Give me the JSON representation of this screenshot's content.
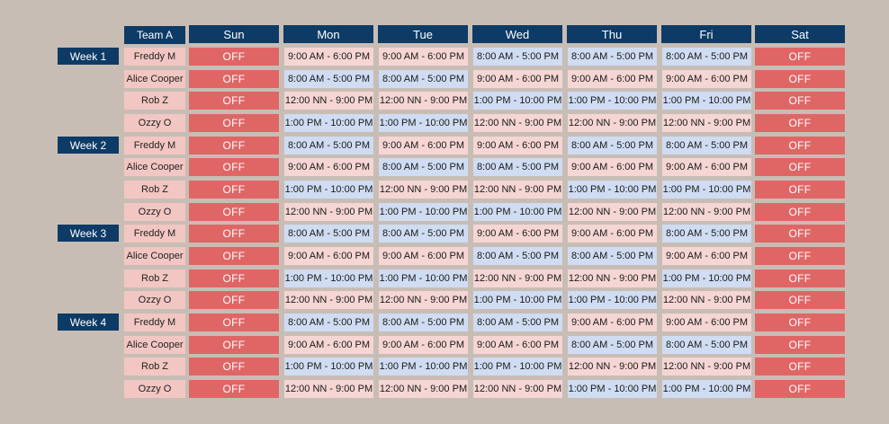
{
  "colors": {
    "background": "#c8bdb5",
    "header": "#0d3b66",
    "off": "#e06666",
    "name_cell": "#f2c6c2",
    "shift_blue": "#cfdcf2",
    "shift_pink": "#f5d6d4"
  },
  "header": {
    "team": "Team A",
    "days": [
      "Sun",
      "Mon",
      "Tue",
      "Wed",
      "Thu",
      "Fri",
      "Sat"
    ]
  },
  "weeks": [
    {
      "label": "Week 1",
      "rows": [
        {
          "name": "Freddy M",
          "cells": [
            {
              "text": "OFF",
              "style": "off"
            },
            {
              "text": "9:00 AM - 6:00 PM",
              "style": "pink"
            },
            {
              "text": "9:00 AM - 6:00 PM",
              "style": "pink"
            },
            {
              "text": "8:00 AM - 5:00 PM",
              "style": "blue"
            },
            {
              "text": "8:00 AM - 5:00 PM",
              "style": "blue"
            },
            {
              "text": "8:00 AM - 5:00 PM",
              "style": "blue"
            },
            {
              "text": "OFF",
              "style": "off"
            }
          ]
        },
        {
          "name": "Alice Cooper",
          "cells": [
            {
              "text": "OFF",
              "style": "off"
            },
            {
              "text": "8:00 AM - 5:00 PM",
              "style": "blue"
            },
            {
              "text": "8:00 AM - 5:00 PM",
              "style": "blue"
            },
            {
              "text": "9:00 AM - 6:00 PM",
              "style": "pink"
            },
            {
              "text": "9:00 AM - 6:00 PM",
              "style": "pink"
            },
            {
              "text": "9:00 AM - 6:00 PM",
              "style": "pink"
            },
            {
              "text": "OFF",
              "style": "off"
            }
          ]
        },
        {
          "name": "Rob Z",
          "cells": [
            {
              "text": "OFF",
              "style": "off"
            },
            {
              "text": "12:00 NN - 9:00 PM",
              "style": "pink"
            },
            {
              "text": "12:00 NN - 9:00 PM",
              "style": "pink"
            },
            {
              "text": "1:00 PM - 10:00 PM",
              "style": "blue"
            },
            {
              "text": "1:00 PM - 10:00 PM",
              "style": "blue"
            },
            {
              "text": "1:00 PM - 10:00 PM",
              "style": "blue"
            },
            {
              "text": "OFF",
              "style": "off"
            }
          ]
        },
        {
          "name": "Ozzy O",
          "cells": [
            {
              "text": "OFF",
              "style": "off"
            },
            {
              "text": "1:00 PM - 10:00 PM",
              "style": "blue"
            },
            {
              "text": "1:00 PM - 10:00 PM",
              "style": "blue"
            },
            {
              "text": "12:00 NN - 9:00 PM",
              "style": "pink"
            },
            {
              "text": "12:00 NN - 9:00 PM",
              "style": "pink"
            },
            {
              "text": "12:00 NN - 9:00 PM",
              "style": "pink"
            },
            {
              "text": "OFF",
              "style": "off"
            }
          ]
        }
      ]
    },
    {
      "label": "Week 2",
      "rows": [
        {
          "name": "Freddy M",
          "cells": [
            {
              "text": "OFF",
              "style": "off"
            },
            {
              "text": "8:00 AM - 5:00 PM",
              "style": "blue"
            },
            {
              "text": "9:00 AM - 6:00 PM",
              "style": "pink"
            },
            {
              "text": "9:00 AM - 6:00 PM",
              "style": "pink"
            },
            {
              "text": "8:00 AM - 5:00 PM",
              "style": "blue"
            },
            {
              "text": "8:00 AM - 5:00 PM",
              "style": "blue"
            },
            {
              "text": "OFF",
              "style": "off"
            }
          ]
        },
        {
          "name": "Alice Cooper",
          "cells": [
            {
              "text": "OFF",
              "style": "off"
            },
            {
              "text": "9:00 AM - 6:00 PM",
              "style": "pink"
            },
            {
              "text": "8:00 AM - 5:00 PM",
              "style": "blue"
            },
            {
              "text": "8:00 AM - 5:00 PM",
              "style": "blue"
            },
            {
              "text": "9:00 AM - 6:00 PM",
              "style": "pink"
            },
            {
              "text": "9:00 AM - 6:00 PM",
              "style": "pink"
            },
            {
              "text": "OFF",
              "style": "off"
            }
          ]
        },
        {
          "name": "Rob Z",
          "cells": [
            {
              "text": "OFF",
              "style": "off"
            },
            {
              "text": "1:00 PM - 10:00 PM",
              "style": "blue"
            },
            {
              "text": "12:00 NN - 9:00 PM",
              "style": "pink"
            },
            {
              "text": "12:00 NN - 9:00 PM",
              "style": "pink"
            },
            {
              "text": "1:00 PM - 10:00 PM",
              "style": "blue"
            },
            {
              "text": "1:00 PM - 10:00 PM",
              "style": "blue"
            },
            {
              "text": "OFF",
              "style": "off"
            }
          ]
        },
        {
          "name": "Ozzy O",
          "cells": [
            {
              "text": "OFF",
              "style": "off"
            },
            {
              "text": "12:00 NN - 9:00 PM",
              "style": "pink"
            },
            {
              "text": "1:00 PM - 10:00 PM",
              "style": "blue"
            },
            {
              "text": "1:00 PM - 10:00 PM",
              "style": "blue"
            },
            {
              "text": "12:00 NN - 9:00 PM",
              "style": "pink"
            },
            {
              "text": "12:00 NN - 9:00 PM",
              "style": "pink"
            },
            {
              "text": "OFF",
              "style": "off"
            }
          ]
        }
      ]
    },
    {
      "label": "Week 3",
      "rows": [
        {
          "name": "Freddy M",
          "cells": [
            {
              "text": "OFF",
              "style": "off"
            },
            {
              "text": "8:00 AM - 5:00 PM",
              "style": "blue"
            },
            {
              "text": "8:00 AM - 5:00 PM",
              "style": "blue"
            },
            {
              "text": "9:00 AM - 6:00 PM",
              "style": "pink"
            },
            {
              "text": "9:00 AM - 6:00 PM",
              "style": "pink"
            },
            {
              "text": "8:00 AM - 5:00 PM",
              "style": "blue"
            },
            {
              "text": "OFF",
              "style": "off"
            }
          ]
        },
        {
          "name": "Alice Cooper",
          "cells": [
            {
              "text": "OFF",
              "style": "off"
            },
            {
              "text": "9:00 AM - 6:00 PM",
              "style": "pink"
            },
            {
              "text": "9:00 AM - 6:00 PM",
              "style": "pink"
            },
            {
              "text": "8:00 AM - 5:00 PM",
              "style": "blue"
            },
            {
              "text": "8:00 AM - 5:00 PM",
              "style": "blue"
            },
            {
              "text": "9:00 AM - 6:00 PM",
              "style": "pink"
            },
            {
              "text": "OFF",
              "style": "off"
            }
          ]
        },
        {
          "name": "Rob Z",
          "cells": [
            {
              "text": "OFF",
              "style": "off"
            },
            {
              "text": "1:00 PM - 10:00 PM",
              "style": "blue"
            },
            {
              "text": "1:00 PM - 10:00 PM",
              "style": "blue"
            },
            {
              "text": "12:00 NN - 9:00 PM",
              "style": "pink"
            },
            {
              "text": "12:00 NN - 9:00 PM",
              "style": "pink"
            },
            {
              "text": "1:00 PM - 10:00 PM",
              "style": "blue"
            },
            {
              "text": "OFF",
              "style": "off"
            }
          ]
        },
        {
          "name": "Ozzy O",
          "cells": [
            {
              "text": "OFF",
              "style": "off"
            },
            {
              "text": "12:00 NN - 9:00 PM",
              "style": "pink"
            },
            {
              "text": "12:00 NN - 9:00 PM",
              "style": "pink"
            },
            {
              "text": "1:00 PM - 10:00 PM",
              "style": "blue"
            },
            {
              "text": "1:00 PM - 10:00 PM",
              "style": "blue"
            },
            {
              "text": "12:00 NN - 9:00 PM",
              "style": "pink"
            },
            {
              "text": "OFF",
              "style": "off"
            }
          ]
        }
      ]
    },
    {
      "label": "Week 4",
      "rows": [
        {
          "name": "Freddy M",
          "cells": [
            {
              "text": "OFF",
              "style": "off"
            },
            {
              "text": "8:00 AM - 5:00 PM",
              "style": "blue"
            },
            {
              "text": "8:00 AM - 5:00 PM",
              "style": "blue"
            },
            {
              "text": "8:00 AM - 5:00 PM",
              "style": "blue"
            },
            {
              "text": "9:00 AM - 6:00 PM",
              "style": "pink"
            },
            {
              "text": "9:00 AM - 6:00 PM",
              "style": "pink"
            },
            {
              "text": "OFF",
              "style": "off"
            }
          ]
        },
        {
          "name": "Alice Cooper",
          "cells": [
            {
              "text": "OFF",
              "style": "off"
            },
            {
              "text": "9:00 AM - 6:00 PM",
              "style": "pink"
            },
            {
              "text": "9:00 AM - 6:00 PM",
              "style": "pink"
            },
            {
              "text": "9:00 AM - 6:00 PM",
              "style": "pink"
            },
            {
              "text": "8:00 AM - 5:00 PM",
              "style": "blue"
            },
            {
              "text": "8:00 AM - 5:00 PM",
              "style": "blue"
            },
            {
              "text": "OFF",
              "style": "off"
            }
          ]
        },
        {
          "name": "Rob Z",
          "cells": [
            {
              "text": "OFF",
              "style": "off"
            },
            {
              "text": "1:00 PM - 10:00 PM",
              "style": "blue"
            },
            {
              "text": "1:00 PM - 10:00 PM",
              "style": "blue"
            },
            {
              "text": "1:00 PM - 10:00 PM",
              "style": "blue"
            },
            {
              "text": "12:00 NN - 9:00 PM",
              "style": "pink"
            },
            {
              "text": "12:00 NN - 9:00 PM",
              "style": "pink"
            },
            {
              "text": "OFF",
              "style": "off"
            }
          ]
        },
        {
          "name": "Ozzy O",
          "cells": [
            {
              "text": "OFF",
              "style": "off"
            },
            {
              "text": "12:00 NN - 9:00 PM",
              "style": "pink"
            },
            {
              "text": "12:00 NN - 9:00 PM",
              "style": "pink"
            },
            {
              "text": "12:00 NN - 9:00 PM",
              "style": "pink"
            },
            {
              "text": "1:00 PM - 10:00 PM",
              "style": "blue"
            },
            {
              "text": "1:00 PM - 10:00 PM",
              "style": "blue"
            },
            {
              "text": "OFF",
              "style": "off"
            }
          ]
        }
      ]
    }
  ]
}
